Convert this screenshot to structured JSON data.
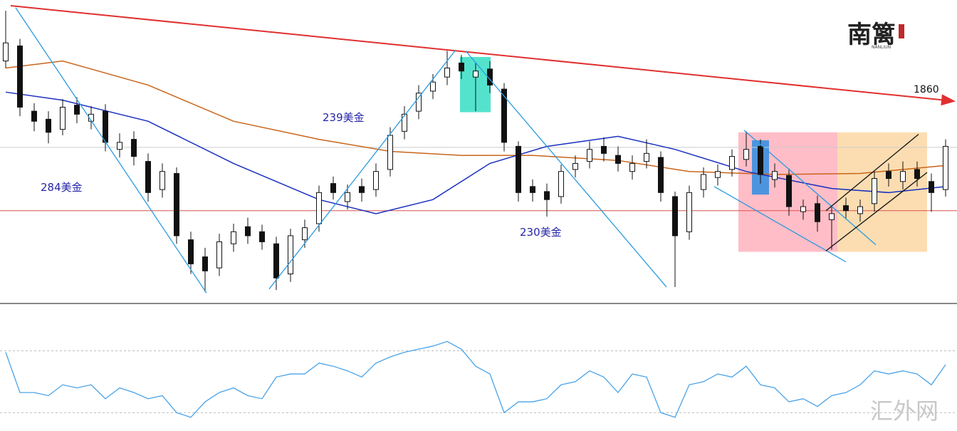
{
  "chart_data": [
    {
      "type": "candlestick",
      "colors": {
        "up": "#ffffff",
        "down": "#111111"
      },
      "ylim": [
        1660,
        1960
      ],
      "open": [
        1900,
        1915,
        1850,
        1842,
        1832,
        1856,
        1840,
        1850,
        1812,
        1822,
        1800,
        1772,
        1788,
        1722,
        1705,
        1694,
        1718,
        1735,
        1730,
        1718,
        1688,
        1722,
        1738,
        1778,
        1760,
        1775,
        1772,
        1792,
        1830,
        1850,
        1870,
        1884,
        1898,
        1884,
        1892,
        1872,
        1815,
        1775,
        1770,
        1765,
        1792,
        1800,
        1815,
        1806,
        1790,
        1800,
        1804,
        1765,
        1730,
        1772,
        1784,
        1792,
        1802,
        1815,
        1782,
        1786,
        1750,
        1758,
        1742,
        1756,
        1748,
        1758,
        1790,
        1780,
        1792,
        1780,
        1772
      ],
      "high": [
        1950,
        1922,
        1858,
        1850,
        1862,
        1864,
        1855,
        1857,
        1828,
        1830,
        1808,
        1798,
        1794,
        1730,
        1714,
        1728,
        1738,
        1744,
        1737,
        1725,
        1733,
        1742,
        1776,
        1785,
        1777,
        1783,
        1798,
        1834,
        1855,
        1876,
        1887,
        1910,
        1906,
        1898,
        1900,
        1878,
        1820,
        1782,
        1778,
        1797,
        1806,
        1820,
        1824,
        1815,
        1806,
        1822,
        1810,
        1770,
        1776,
        1794,
        1797,
        1812,
        1830,
        1822,
        1798,
        1793,
        1762,
        1766,
        1756,
        1764,
        1762,
        1790,
        1798,
        1800,
        1800,
        1788,
        1822
      ],
      "low": [
        1893,
        1845,
        1830,
        1818,
        1826,
        1838,
        1832,
        1810,
        1804,
        1796,
        1760,
        1764,
        1718,
        1688,
        1670,
        1686,
        1710,
        1718,
        1712,
        1672,
        1680,
        1714,
        1730,
        1762,
        1752,
        1760,
        1765,
        1785,
        1822,
        1842,
        1862,
        1876,
        1882,
        1850,
        1868,
        1810,
        1760,
        1760,
        1745,
        1758,
        1784,
        1793,
        1800,
        1790,
        1782,
        1793,
        1760,
        1675,
        1722,
        1764,
        1776,
        1785,
        1795,
        1778,
        1774,
        1746,
        1742,
        1730,
        1712,
        1743,
        1740,
        1750,
        1775,
        1772,
        1775,
        1750,
        1765
      ],
      "close": [
        1918,
        1854,
        1840,
        1829,
        1854,
        1847,
        1847,
        1819,
        1819,
        1805,
        1769,
        1790,
        1726,
        1698,
        1691,
        1720,
        1730,
        1726,
        1720,
        1684,
        1726,
        1734,
        1769,
        1769,
        1769,
        1769,
        1790,
        1826,
        1847,
        1868,
        1879,
        1893,
        1890,
        1890,
        1876,
        1819,
        1769,
        1769,
        1762,
        1790,
        1798,
        1812,
        1808,
        1798,
        1798,
        1808,
        1769,
        1726,
        1769,
        1787,
        1790,
        1805,
        1812,
        1787,
        1790,
        1755,
        1755,
        1740,
        1748,
        1751,
        1755,
        1783,
        1783,
        1790,
        1783,
        1769,
        1815
      ],
      "lines": [
        {
          "color": "#c8651b",
          "x": [
            0,
            4,
            10,
            16,
            22,
            27,
            32,
            37,
            43,
            48,
            54,
            60,
            66
          ],
          "values": [
            1893,
            1900,
            1876,
            1840,
            1822,
            1810,
            1806,
            1806,
            1801,
            1790,
            1787,
            1788,
            1796
          ]
        },
        {
          "color": "#1a2fc0",
          "x": [
            0,
            4,
            10,
            16,
            22,
            26,
            30,
            34,
            38,
            43,
            47,
            52,
            58,
            62,
            66
          ],
          "values": [
            1869,
            1861,
            1840,
            1798,
            1762,
            1748,
            1762,
            1798,
            1815,
            1825,
            1812,
            1790,
            1773,
            1769,
            1775
          ]
        }
      ],
      "levels": [
        {
          "value": 1814,
          "color": "#cccccc"
        },
        {
          "value": 1751,
          "color": "#d9534f"
        }
      ],
      "zones": [
        {
          "color": "#40e0c8",
          "x": [
            31.9,
            34.05
          ],
          "values": [
            1904,
            1849
          ]
        },
        {
          "color": "#ffb6c1",
          "x": [
            51.45,
            58.4
          ],
          "values": [
            1829,
            1710
          ]
        },
        {
          "color": "#fcd9a8",
          "x": [
            58.4,
            64.7
          ],
          "values": [
            1829,
            1710
          ]
        },
        {
          "color": "#3a8fe0",
          "x": [
            52.4,
            53.6
          ],
          "values": [
            1821,
            1767
          ]
        }
      ],
      "trendlines": [
        {
          "color": "#e03030",
          "from": [
            0.35,
            1955
          ],
          "to": [
            66.6,
            1860
          ],
          "arrow": true
        },
        {
          "color": "#2a9be0",
          "from": [
            0.7,
            1953
          ],
          "to": [
            14.1,
            1669
          ]
        },
        {
          "color": "#2a9be0",
          "from": [
            18.5,
            1673
          ],
          "to": [
            31.6,
            1911
          ]
        },
        {
          "color": "#2a9be0",
          "from": [
            32.3,
            1910
          ],
          "to": [
            46.4,
            1675
          ]
        },
        {
          "color": "#2a9be0",
          "from": [
            51.85,
            1831
          ],
          "to": [
            61.1,
            1717
          ]
        },
        {
          "color": "#2a9be0",
          "from": [
            49.75,
            1775
          ],
          "to": [
            59.0,
            1700
          ]
        },
        {
          "color": "#111111",
          "from": [
            57.6,
            1711
          ],
          "to": [
            64.7,
            1789
          ]
        },
        {
          "color": "#111111",
          "from": [
            57.6,
            1751
          ],
          "to": [
            64.1,
            1827
          ]
        }
      ],
      "annotations": [
        "284美金",
        "239美金",
        "230美金",
        "1860"
      ]
    },
    {
      "type": "line",
      "color": "#4aa3e8",
      "ylim": [
        20,
        95
      ],
      "levels": [
        70,
        30
      ],
      "values": [
        69,
        43,
        43,
        41,
        48,
        46,
        48,
        39,
        46,
        43,
        39,
        41,
        30,
        27,
        37,
        43,
        46,
        41,
        39,
        53,
        55,
        55,
        62,
        60,
        57,
        53,
        62,
        66,
        69,
        71,
        73,
        76,
        71,
        60,
        55,
        30,
        37,
        37,
        39,
        48,
        50,
        57,
        53,
        43,
        55,
        53,
        30,
        27,
        48,
        50,
        55,
        53,
        60,
        48,
        46,
        37,
        39,
        34,
        41,
        43,
        48,
        57,
        55,
        57,
        55,
        48,
        61
      ]
    }
  ],
  "logo": {
    "title": "南篱",
    "subtitle": "NANLIUN"
  },
  "watermark": "汇外网"
}
